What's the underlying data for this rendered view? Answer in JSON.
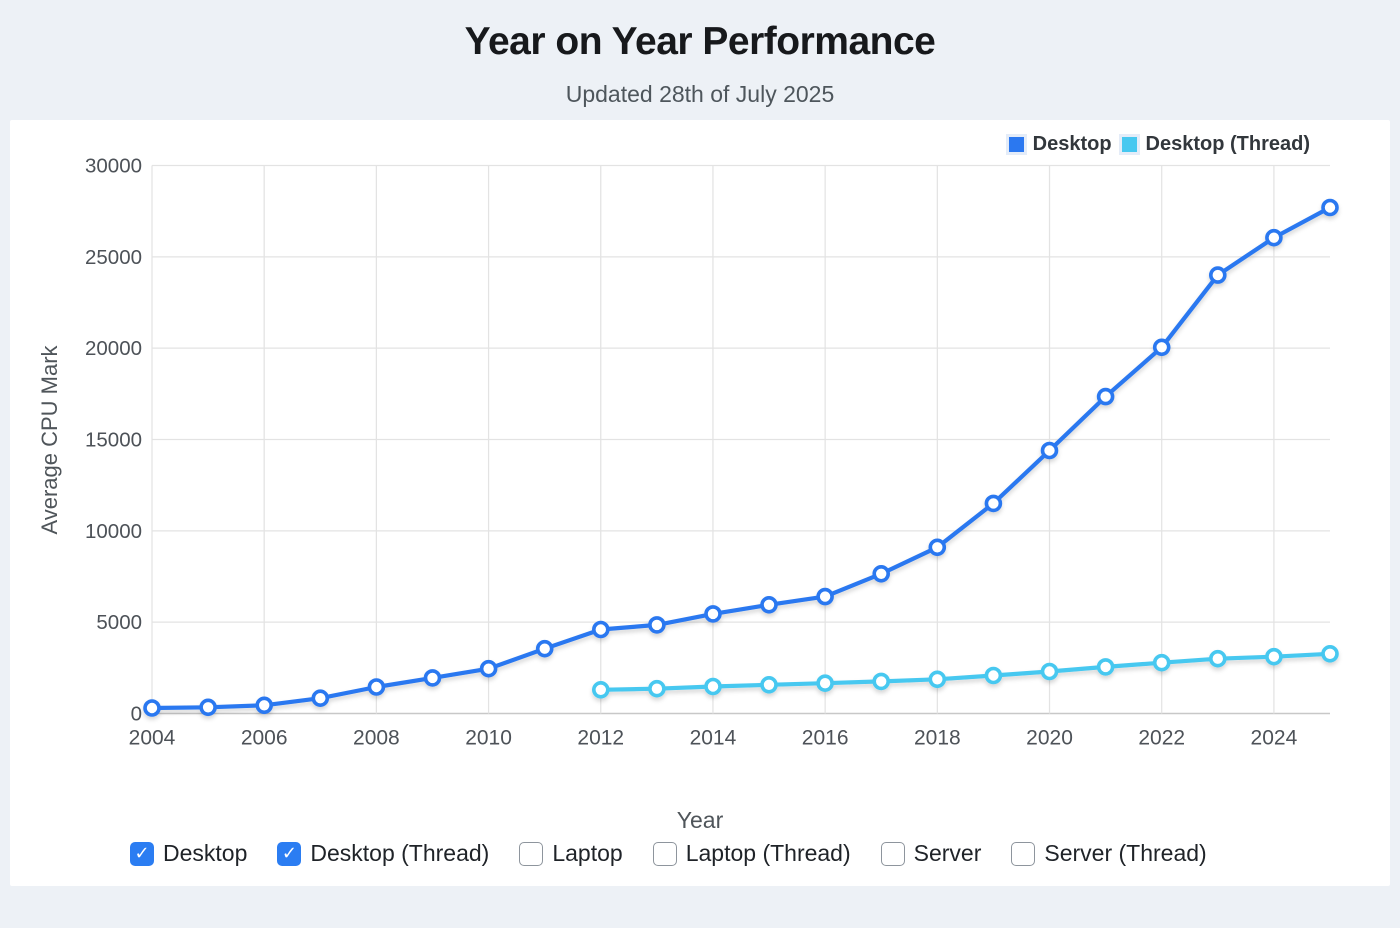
{
  "header": {
    "title": "Year on Year Performance",
    "subtitle": "Updated 28th of July 2025"
  },
  "legend": {
    "items": [
      {
        "label": "Desktop",
        "color": "#2b78f0"
      },
      {
        "label": "Desktop (Thread)",
        "color": "#47c8f0"
      }
    ]
  },
  "chart_data": {
    "type": "line",
    "title": "Year on Year Performance",
    "xlabel": "Year",
    "ylabel": "Average CPU Mark",
    "xlim": [
      2004,
      2025
    ],
    "ylim": [
      0,
      30000
    ],
    "xticks": [
      2004,
      2006,
      2008,
      2010,
      2012,
      2014,
      2016,
      2018,
      2020,
      2022,
      2024
    ],
    "yticks": [
      0,
      5000,
      10000,
      15000,
      20000,
      25000,
      30000
    ],
    "grid": true,
    "legend_position": "top-right",
    "marker": "circle-open",
    "series": [
      {
        "name": "Desktop",
        "color": "#2b78f0",
        "x": [
          2004,
          2005,
          2006,
          2007,
          2008,
          2009,
          2010,
          2011,
          2012,
          2013,
          2014,
          2015,
          2016,
          2017,
          2018,
          2019,
          2020,
          2021,
          2022,
          2023,
          2024,
          2025
        ],
        "values": [
          300,
          340,
          450,
          840,
          1450,
          1950,
          2450,
          3550,
          4600,
          4850,
          5450,
          5950,
          6400,
          7650,
          9100,
          11500,
          14400,
          17350,
          20050,
          24000,
          26050,
          27700
        ]
      },
      {
        "name": "Desktop (Thread)",
        "color": "#47c8f0",
        "x": [
          2012,
          2013,
          2014,
          2015,
          2016,
          2017,
          2018,
          2019,
          2020,
          2021,
          2022,
          2023,
          2024,
          2025
        ],
        "values": [
          1300,
          1360,
          1480,
          1570,
          1660,
          1760,
          1870,
          2080,
          2300,
          2550,
          2780,
          3000,
          3110,
          3270
        ]
      }
    ]
  },
  "toggles": {
    "items": [
      {
        "label": "Desktop",
        "checked": true
      },
      {
        "label": "Desktop (Thread)",
        "checked": true
      },
      {
        "label": "Laptop",
        "checked": false
      },
      {
        "label": "Laptop (Thread)",
        "checked": false
      },
      {
        "label": "Server",
        "checked": false
      },
      {
        "label": "Server (Thread)",
        "checked": false
      }
    ]
  },
  "style": {
    "grid_color": "#e3e3e3",
    "axis_color": "#c8c8c8",
    "tick_color": "#4d5258",
    "marker_fill": "#ffffff"
  }
}
